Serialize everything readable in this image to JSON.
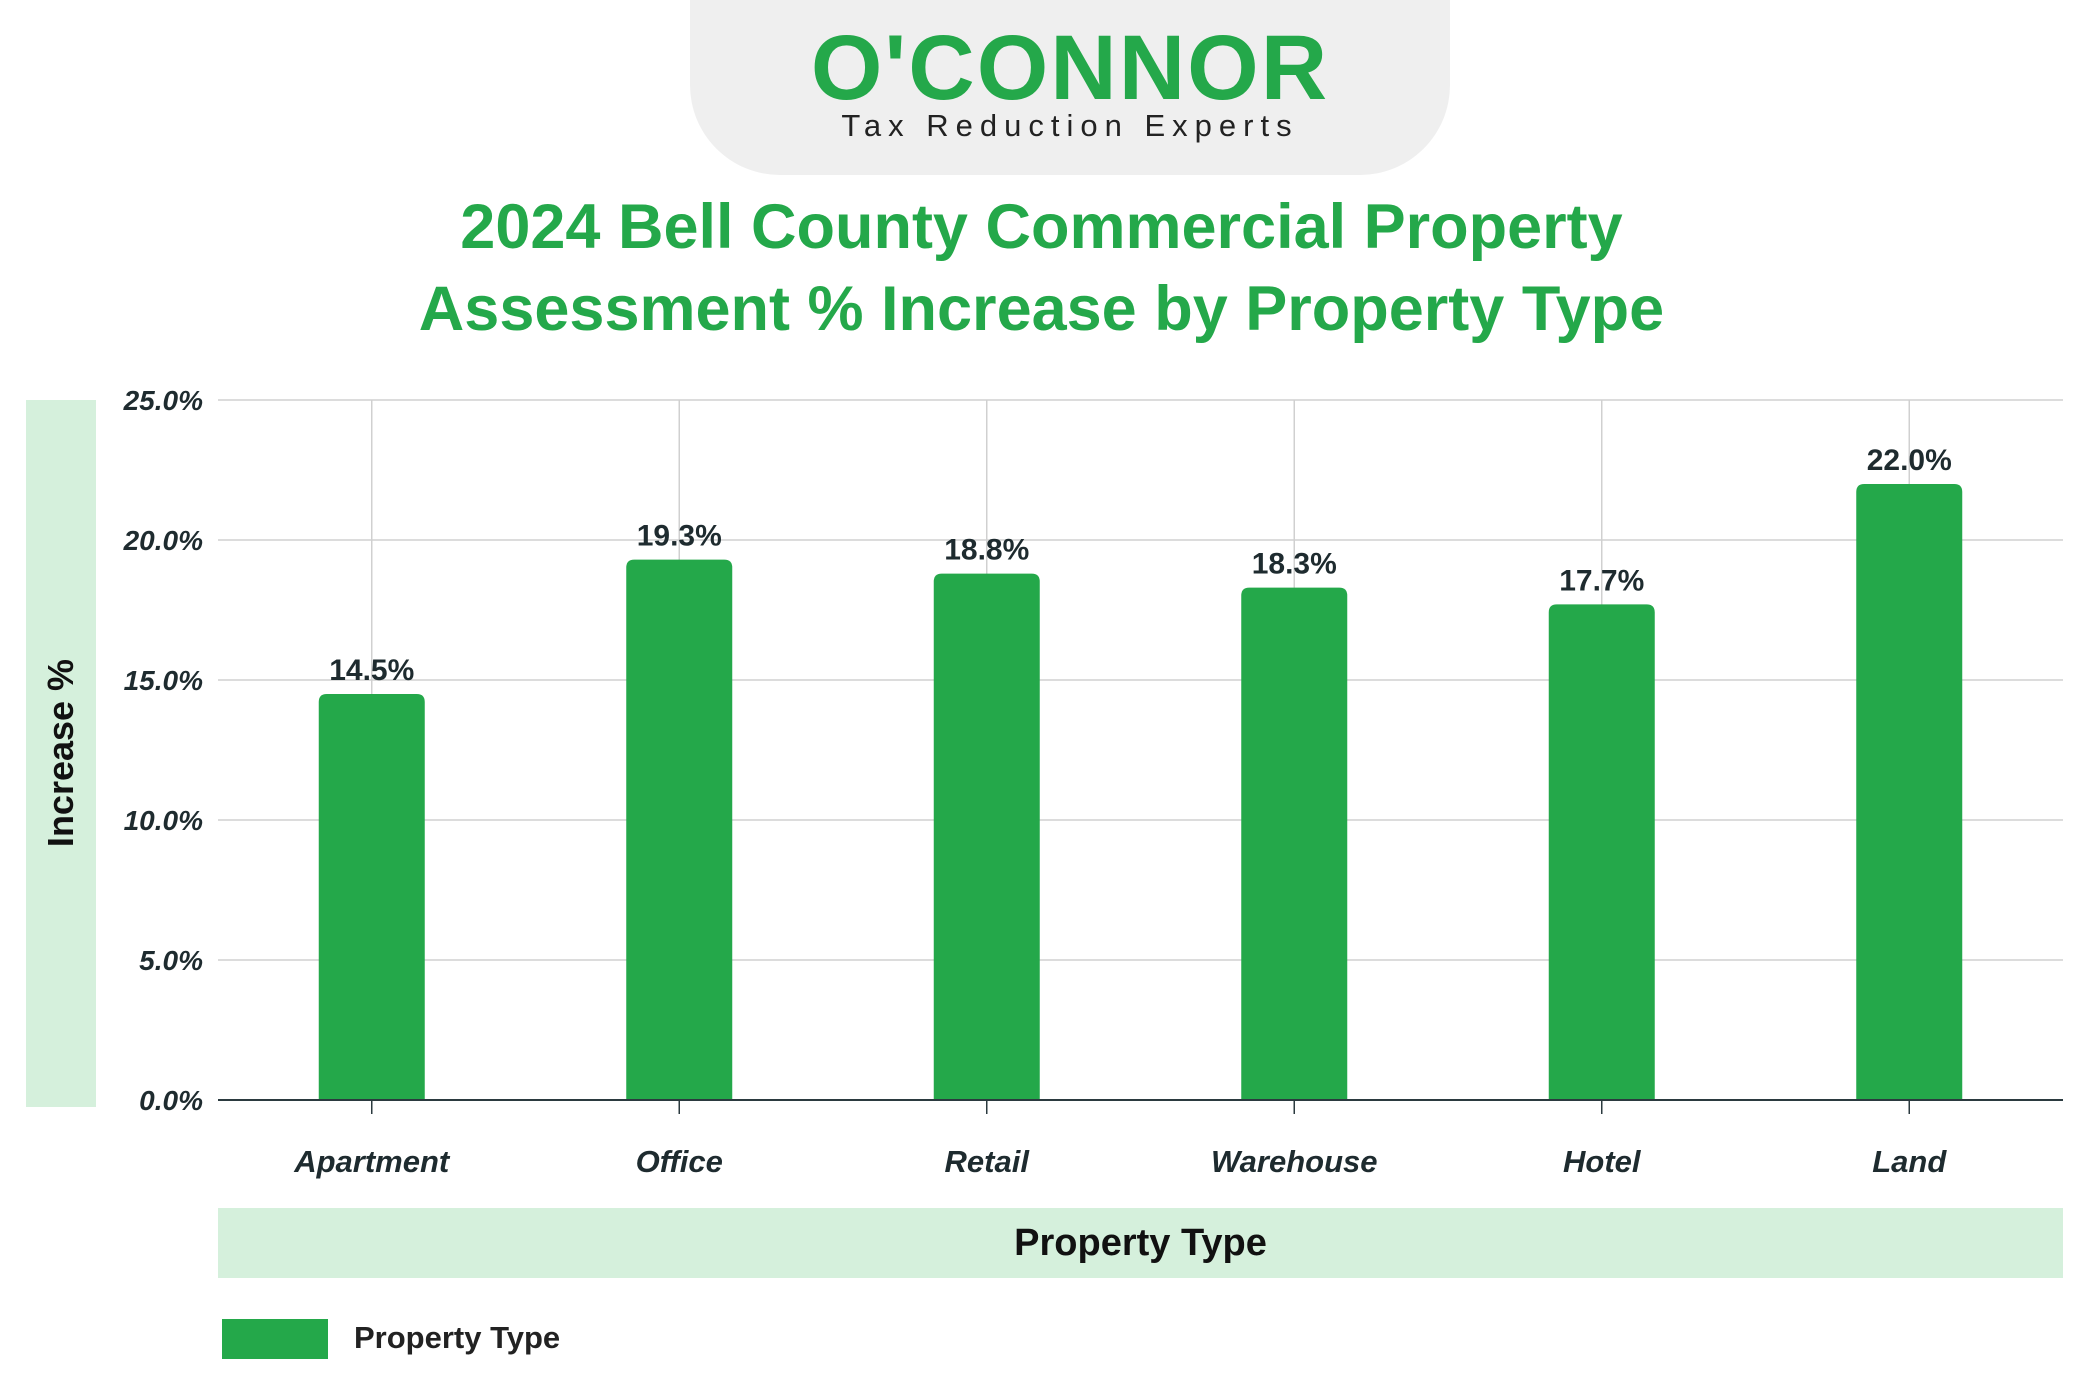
{
  "logo": {
    "wordmark": "O'CONNOR",
    "tagline": "Tax Reduction Experts"
  },
  "colors": {
    "accent": "#24a84a",
    "label_band": "#d5f0dc",
    "logo_tab": "#efefef",
    "grid": "#d0d0d0",
    "tick_text": "#1e2b2f"
  },
  "chart_data": {
    "type": "bar",
    "title": "2024 Bell County Commercial Property Assessment % Increase by Property Type",
    "title_lines": [
      "2024 Bell County Commercial Property",
      "Assessment % Increase by Property Type"
    ],
    "xlabel": "Property Type",
    "ylabel": "Increase %",
    "categories": [
      "Apartment",
      "Office",
      "Retail",
      "Warehouse",
      "Hotel",
      "Land"
    ],
    "series": [
      {
        "name": "Property Type",
        "values": [
          14.5,
          19.3,
          18.8,
          18.3,
          17.7,
          22.0
        ],
        "data_labels": [
          "14.5%",
          "19.3%",
          "18.8%",
          "18.3%",
          "17.7%",
          "22.0%"
        ]
      }
    ],
    "ylim": [
      0,
      25
    ],
    "yticks": [
      0,
      5,
      10,
      15,
      20,
      25
    ],
    "ytick_labels": [
      "0.0%",
      "5.0%",
      "10.0%",
      "15.0%",
      "20.0%",
      "25.0%"
    ],
    "grid": true,
    "legend": "bottom-left"
  }
}
